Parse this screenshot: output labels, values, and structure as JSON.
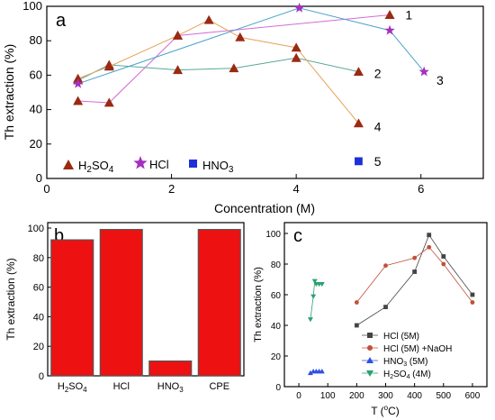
{
  "chart_data": [
    {
      "panel": "a",
      "type": "line",
      "xlabel": "Concentration (M)",
      "ylabel": "Th extraction (%)",
      "xlim": [
        0,
        7
      ],
      "ylim": [
        0,
        100
      ],
      "xticks": [
        0,
        2,
        4,
        6
      ],
      "yticks": [
        0,
        20,
        40,
        60,
        80,
        100
      ],
      "grid": false,
      "legend_position": "bottom-left",
      "series": [
        {
          "name": "H2SO4",
          "name_main": "H",
          "name_sub1": "2",
          "name_mid": "SO",
          "name_sub2": "4",
          "marker": "triangle",
          "color": "#9a2a12",
          "points": [
            [
              0.5,
              58
            ],
            [
              1.0,
              65
            ],
            [
              2.1,
              83
            ],
            [
              2.6,
              92
            ],
            [
              3.1,
              82
            ],
            [
              4.0,
              76
            ],
            [
              5.0,
              32
            ]
          ]
        },
        {
          "name": "HCl",
          "marker": "star",
          "color": "#a42fc0",
          "points": [
            [
              0.5,
              55
            ],
            [
              4.05,
              99
            ],
            [
              5.5,
              86
            ],
            [
              6.05,
              62
            ]
          ]
        },
        {
          "name": "HNO3",
          "name_main": "HNO",
          "name_sub1": "3",
          "marker": "square",
          "color": "#1e2fd8",
          "points": [
            [
              5.0,
              10
            ]
          ]
        }
      ],
      "extra_lines": [
        {
          "label": "1",
          "color": "#d36bd6",
          "points": [
            [
              0.5,
              45
            ],
            [
              1.0,
              44
            ],
            [
              2.1,
              83
            ],
            [
              5.5,
              95
            ]
          ],
          "marker": "triangle"
        },
        {
          "label": "2",
          "color": "#59a898",
          "points": [
            [
              0.5,
              57
            ],
            [
              1.0,
              66
            ],
            [
              2.1,
              63
            ],
            [
              3.0,
              64
            ],
            [
              4.0,
              70
            ],
            [
              5.0,
              62
            ]
          ],
          "marker": "triangle"
        }
      ],
      "curve_labels": [
        {
          "text": "1",
          "x": 5.75,
          "y": 95
        },
        {
          "text": "2",
          "x": 5.25,
          "y": 61
        },
        {
          "text": "3",
          "x": 6.25,
          "y": 57
        },
        {
          "text": "4",
          "x": 5.25,
          "y": 30
        },
        {
          "text": "5",
          "x": 5.25,
          "y": 10
        }
      ]
    },
    {
      "panel": "b",
      "type": "bar",
      "xlabel": "",
      "ylabel": "Th extraction (%)",
      "ylim": [
        0,
        100
      ],
      "yticks": [
        0,
        20,
        40,
        60,
        80,
        100
      ],
      "color": "#ee1111",
      "categories": [
        {
          "main": "H",
          "sub1": "2",
          "mid": "SO",
          "sub2": "4"
        },
        {
          "main": "HCl"
        },
        {
          "main": "HNO",
          "sub1": "3"
        },
        {
          "main": "CPE"
        }
      ],
      "values": [
        92,
        99,
        10,
        99
      ]
    },
    {
      "panel": "c",
      "type": "line",
      "xlabel_main": "T (",
      "xlabel_sup": "o",
      "xlabel_end": "C)",
      "ylabel": "Th extraction (%)",
      "xlim": [
        -50,
        650
      ],
      "ylim": [
        0,
        100
      ],
      "xticks": [
        0,
        100,
        200,
        300,
        400,
        500,
        600
      ],
      "yticks": [
        0,
        20,
        40,
        60,
        80,
        100
      ],
      "legend_position": "bottom-right",
      "series": [
        {
          "name": "HCl (5M)",
          "marker": "square",
          "color": "#444444",
          "points": [
            [
              200,
              40
            ],
            [
              300,
              52
            ],
            [
              400,
              75
            ],
            [
              450,
              99
            ],
            [
              500,
              85
            ],
            [
              600,
              60
            ]
          ]
        },
        {
          "name": "HCl (5M) +NaOH",
          "marker": "circle",
          "color": "#c0503a",
          "points": [
            [
              200,
              55
            ],
            [
              300,
              79
            ],
            [
              400,
              84
            ],
            [
              450,
              91
            ],
            [
              500,
              80
            ],
            [
              600,
              55
            ]
          ]
        },
        {
          "name": "HNO3 (5M)",
          "name_main": "HNO",
          "name_sub": "3",
          "name_end": " (5M)",
          "marker": "triangle",
          "color": "#3050e0",
          "points": [
            [
              40,
              9
            ],
            [
              50,
              10
            ],
            [
              60,
              10
            ],
            [
              70,
              10
            ],
            [
              80,
              10
            ]
          ]
        },
        {
          "name": "H2SO4 (4M)",
          "name_main": "H",
          "name_sub1": "2",
          "name_mid": "SO",
          "name_sub2": "4",
          "name_end": " (4M)",
          "marker": "triangle-down",
          "color": "#2aa070",
          "points": [
            [
              40,
              44
            ],
            [
              50,
              59
            ],
            [
              55,
              69
            ],
            [
              60,
              67
            ],
            [
              70,
              67
            ],
            [
              80,
              67
            ]
          ]
        }
      ]
    }
  ]
}
